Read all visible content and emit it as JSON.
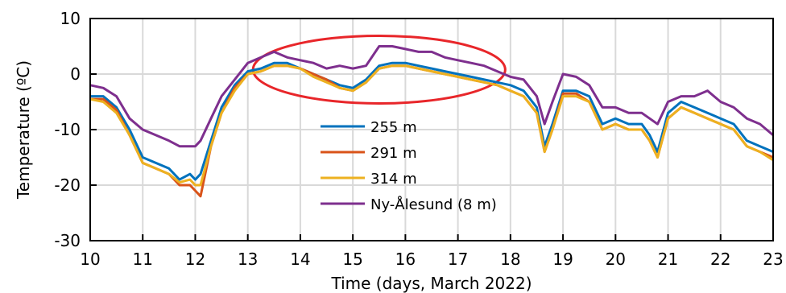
{
  "chart_data": {
    "type": "line",
    "xlabel": "Time (days, March 2022)",
    "ylabel": "Temperature (ºC)",
    "xlim": [
      10,
      23
    ],
    "ylim": [
      -30,
      10
    ],
    "x_ticks": [
      "10",
      "11",
      "12",
      "13",
      "14",
      "15",
      "16",
      "17",
      "18",
      "19",
      "20",
      "21",
      "22",
      "23"
    ],
    "y_ticks": [
      "10",
      "0",
      "-10",
      "-20",
      "-30"
    ],
    "grid": true,
    "legend_position": "center",
    "x": [
      10.0,
      10.25,
      10.5,
      10.75,
      11.0,
      11.25,
      11.5,
      11.7,
      11.9,
      12.0,
      12.1,
      12.3,
      12.5,
      12.75,
      13.0,
      13.25,
      13.5,
      13.75,
      14.0,
      14.25,
      14.5,
      14.75,
      15.0,
      15.25,
      15.5,
      15.75,
      16.0,
      16.25,
      16.5,
      16.75,
      17.0,
      17.25,
      17.5,
      17.75,
      18.0,
      18.25,
      18.5,
      18.65,
      18.8,
      19.0,
      19.25,
      19.5,
      19.75,
      20.0,
      20.25,
      20.5,
      20.65,
      20.8,
      21.0,
      21.25,
      21.5,
      21.75,
      22.0,
      22.25,
      22.5,
      22.75,
      23.0
    ],
    "series": [
      {
        "name": "255 m",
        "color": "#0072BD",
        "values": [
          -4,
          -4,
          -6,
          -10,
          -15,
          -16,
          -17,
          -19,
          -18,
          -19,
          -18,
          -12,
          -6,
          -2,
          0.5,
          1,
          2,
          2,
          1,
          0,
          -1,
          -2,
          -2.5,
          -1,
          1.5,
          2,
          2,
          1.5,
          1,
          0.5,
          0,
          -0.5,
          -1,
          -1.5,
          -2,
          -3,
          -6,
          -13,
          -9,
          -3,
          -3,
          -4,
          -9,
          -8,
          -9,
          -9,
          -11,
          -14,
          -7,
          -5,
          -6,
          -7,
          -8,
          -9,
          -12,
          -13,
          -14
        ]
      },
      {
        "name": "291 m",
        "color": "#D95319",
        "values": [
          -4.5,
          -4.5,
          -6.5,
          -11,
          -16,
          -17,
          -18,
          -20,
          -20,
          -21,
          -22,
          -13,
          -7,
          -2.5,
          0,
          0.5,
          1.5,
          1.5,
          1,
          0,
          -1,
          -2.5,
          -3,
          -1.5,
          1,
          1.5,
          1.5,
          1,
          0.5,
          0,
          -0.5,
          -1,
          -1.5,
          -2,
          -3,
          -4,
          -7,
          -14,
          -10,
          -3.5,
          -3.5,
          -5,
          -10,
          -9,
          -10,
          -10,
          -12,
          -15,
          -8,
          -6,
          -7,
          -8,
          -9,
          -10,
          -13,
          -14,
          -15
        ]
      },
      {
        "name": "314 m",
        "color": "#EDB120",
        "values": [
          -4.5,
          -5,
          -7,
          -11,
          -16,
          -17,
          -18,
          -19.5,
          -19,
          -20,
          -20,
          -13,
          -7,
          -3,
          0,
          0.5,
          1.5,
          1.5,
          1,
          -0.5,
          -1.5,
          -2.5,
          -3,
          -1.5,
          1,
          1.5,
          1.5,
          1,
          0.5,
          0,
          -0.5,
          -1,
          -1.5,
          -2,
          -3,
          -4,
          -7,
          -14,
          -10,
          -4,
          -4,
          -5,
          -10,
          -9,
          -10,
          -10,
          -12,
          -15,
          -8,
          -6,
          -7,
          -8,
          -9,
          -10,
          -13,
          -14,
          -15.5
        ]
      },
      {
        "name": "Ny-Ålesund (8 m)",
        "color": "#7E2F8E",
        "values": [
          -2,
          -2.5,
          -4,
          -8,
          -10,
          -11,
          -12,
          -13,
          -13,
          -13,
          -12,
          -8,
          -4,
          -1,
          2,
          3,
          4,
          3,
          2.5,
          2,
          1,
          1.5,
          1,
          1.5,
          5,
          5,
          4.5,
          4,
          4,
          3,
          2.5,
          2,
          1.5,
          0.5,
          -0.5,
          -1,
          -4,
          -9,
          -5,
          0,
          -0.5,
          -2,
          -6,
          -6,
          -7,
          -7,
          -8,
          -9,
          -5,
          -4,
          -4,
          -3,
          -5,
          -6,
          -8,
          -9,
          -11
        ]
      }
    ]
  }
}
